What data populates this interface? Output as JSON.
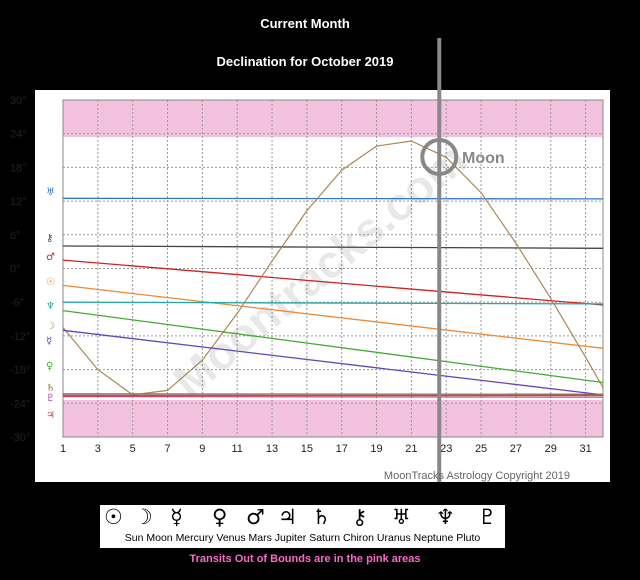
{
  "header": {
    "title": "Current Month",
    "subtitle": "Declination for October 2019"
  },
  "chart_data": {
    "type": "line",
    "title": "Declination for October 2019",
    "xlim": [
      1,
      32
    ],
    "ylim": [
      -30,
      30
    ],
    "x_ticks": [
      "1",
      "3",
      "5",
      "7",
      "9",
      "11",
      "13",
      "15",
      "17",
      "19",
      "21",
      "23",
      "25",
      "27",
      "29",
      "31"
    ],
    "y_ticks": [
      "30°",
      "24°",
      "18°",
      "12°",
      "6°",
      "0°",
      "-6°",
      "-12°",
      "-18°",
      "-24°",
      "-30°"
    ],
    "out_of_bounds_bands": [
      [
        23.4,
        30
      ],
      [
        -30,
        -23.4
      ]
    ],
    "grid": true,
    "current_day": 22.6,
    "series": [
      {
        "glyph": "♅",
        "color": "#3377cc",
        "points": [
          [
            1,
            12.5
          ],
          [
            32,
            12.4
          ]
        ]
      },
      {
        "glyph": "⚷",
        "color": "#444444",
        "points": [
          [
            1,
            4.0
          ],
          [
            32,
            3.6
          ]
        ]
      },
      {
        "glyph": "♂",
        "color": "#cc2222",
        "points": [
          [
            1,
            1.5
          ],
          [
            32,
            -6.5
          ]
        ]
      },
      {
        "glyph": "☉",
        "color": "#ee8833",
        "points": [
          [
            1,
            -3.0
          ],
          [
            32,
            -14.2
          ]
        ]
      },
      {
        "glyph": "♆",
        "color": "#22aaaa",
        "points": [
          [
            1,
            -6.0
          ],
          [
            32,
            -6.3
          ]
        ]
      },
      {
        "glyph": "☽",
        "color": "#aa8855",
        "points": [
          [
            1,
            -10.5
          ],
          [
            3,
            -18.0
          ],
          [
            5,
            -22.5
          ],
          [
            7,
            -21.7
          ],
          [
            9,
            -16.3
          ],
          [
            11,
            -8.0
          ],
          [
            13,
            1.3
          ],
          [
            15,
            10.3
          ],
          [
            17,
            17.5
          ],
          [
            19,
            21.8
          ],
          [
            21,
            22.7
          ],
          [
            23,
            19.8
          ],
          [
            25,
            13.5
          ],
          [
            27,
            4.5
          ],
          [
            29,
            -5.3
          ],
          [
            31,
            -15.8
          ],
          [
            32,
            -21.2
          ]
        ]
      },
      {
        "glyph": "☿",
        "color": "#6644bb",
        "points": [
          [
            1,
            -11.0
          ],
          [
            32,
            -22.5
          ]
        ]
      },
      {
        "glyph": "♀",
        "color": "#44aa33",
        "points": [
          [
            1,
            -7.5
          ],
          [
            32,
            -20.3
          ]
        ]
      },
      {
        "glyph": "♄",
        "color": "#887733",
        "points": [
          [
            1,
            -22.3
          ],
          [
            32,
            -22.4
          ]
        ]
      },
      {
        "glyph": "♇",
        "color": "#aa44aa",
        "points": [
          [
            1,
            -22.6
          ],
          [
            32,
            -22.6
          ]
        ]
      },
      {
        "glyph": "♃",
        "color": "#cc4466",
        "points": [
          [
            1,
            -22.8
          ],
          [
            32,
            -22.9
          ]
        ]
      }
    ],
    "left_glyphs": [
      "♅",
      "⚷",
      "♂",
      "☉",
      "♆",
      "☽",
      "☿",
      "♀",
      "♄",
      "♇",
      "♃"
    ],
    "annotation": "Moon",
    "watermark": "Moontracks.com",
    "copyright": "MoonTracks Astrology Copyright 2019"
  },
  "legend": {
    "glyphs": [
      "☉",
      "☽",
      "☿",
      "♀",
      "♂",
      "♃",
      "♄",
      "⚷",
      "♅",
      "♆",
      "♇"
    ],
    "names": "Sun Moon Mercury Venus Mars Jupiter Saturn Chiron Uranus Neptune Pluto"
  },
  "footer": "Transits Out of Bounds are in the pink areas"
}
